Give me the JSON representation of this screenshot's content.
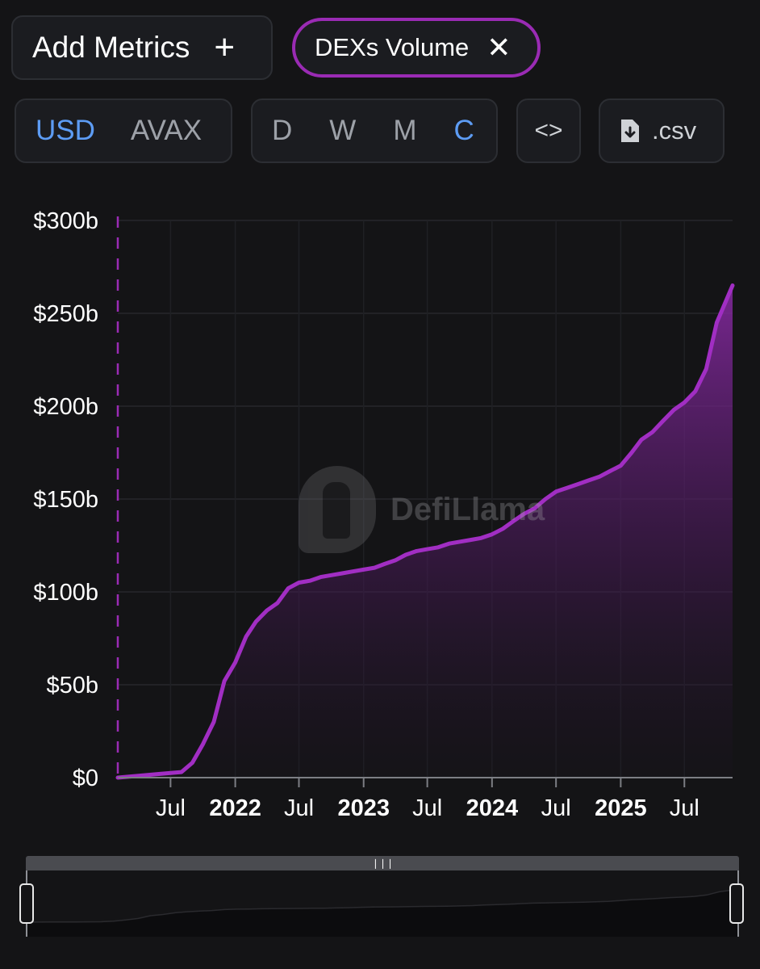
{
  "toolbar": {
    "add_metrics_label": "Add Metrics",
    "add_icon": "plus-icon",
    "metric_chip_label": "DEXs Volume",
    "remove_icon": "close-icon",
    "currency_options": [
      "USD",
      "AVAX"
    ],
    "currency_selected": "USD",
    "interval_options": [
      "D",
      "W",
      "M",
      "C"
    ],
    "interval_selected": "C",
    "embed_icon": "code-icon",
    "csv_label": ".csv",
    "csv_icon": "file-download-icon"
  },
  "watermark": {
    "text": "DefiLlama",
    "icon": "llama-logo-icon"
  },
  "colors": {
    "accent": "#9a2bb4",
    "line": "#a12ec3",
    "active_option": "#5d9cf4",
    "background": "#141416"
  },
  "chart_data": {
    "type": "area",
    "title": "",
    "xlabel": "",
    "ylabel": "",
    "ylim": [
      0,
      300
    ],
    "y_unit": "b (USD)",
    "y_ticks": [
      "$0",
      "$50b",
      "$100b",
      "$150b",
      "$200b",
      "$250b",
      "$300b"
    ],
    "x_ticks": [
      {
        "label": "Jul",
        "year": false,
        "date": "2021-07-01"
      },
      {
        "label": "2022",
        "year": true,
        "date": "2022-01-01"
      },
      {
        "label": "Jul",
        "year": false,
        "date": "2022-07-01"
      },
      {
        "label": "2023",
        "year": true,
        "date": "2023-01-01"
      },
      {
        "label": "Jul",
        "year": false,
        "date": "2023-07-01"
      },
      {
        "label": "2024",
        "year": true,
        "date": "2024-01-01"
      },
      {
        "label": "Jul",
        "year": false,
        "date": "2024-07-01"
      },
      {
        "label": "2025",
        "year": true,
        "date": "2025-01-01"
      },
      {
        "label": "Jul",
        "year": false,
        "date": "2025-07-01"
      }
    ],
    "xlim": [
      "2021-02-01",
      "2025-11-15"
    ],
    "grid": true,
    "legend": "none",
    "series": [
      {
        "cumulative": true,
        "x": [
          "2021-02-01",
          "2021-04-01",
          "2021-06-01",
          "2021-08-01",
          "2021-09-01",
          "2021-10-01",
          "2021-11-01",
          "2021-12-01",
          "2022-01-01",
          "2022-02-01",
          "2022-03-01",
          "2022-04-01",
          "2022-05-01",
          "2022-06-01",
          "2022-07-01",
          "2022-08-01",
          "2022-09-01",
          "2022-10-01",
          "2022-11-01",
          "2022-12-01",
          "2023-01-01",
          "2023-02-01",
          "2023-03-01",
          "2023-04-01",
          "2023-05-01",
          "2023-06-01",
          "2023-07-01",
          "2023-08-01",
          "2023-09-01",
          "2023-10-01",
          "2023-11-01",
          "2023-12-01",
          "2024-01-01",
          "2024-02-01",
          "2024-03-01",
          "2024-04-01",
          "2024-05-01",
          "2024-06-01",
          "2024-07-01",
          "2024-08-01",
          "2024-09-01",
          "2024-10-01",
          "2024-11-01",
          "2024-12-01",
          "2025-01-01",
          "2025-02-01",
          "2025-03-01",
          "2025-04-01",
          "2025-05-01",
          "2025-06-01",
          "2025-07-01",
          "2025-08-01",
          "2025-09-01",
          "2025-10-01",
          "2025-11-15"
        ],
        "y": [
          0,
          1,
          2,
          3,
          8,
          18,
          30,
          52,
          62,
          76,
          84,
          90,
          94,
          102,
          105,
          106,
          108,
          109,
          110,
          111,
          112,
          113,
          115,
          117,
          120,
          122,
          123,
          124,
          126,
          127,
          128,
          129,
          131,
          134,
          138,
          142,
          145,
          150,
          154,
          156,
          158,
          160,
          162,
          165,
          168,
          175,
          182,
          186,
          192,
          198,
          202,
          208,
          220,
          245,
          265
        ]
      }
    ]
  }
}
